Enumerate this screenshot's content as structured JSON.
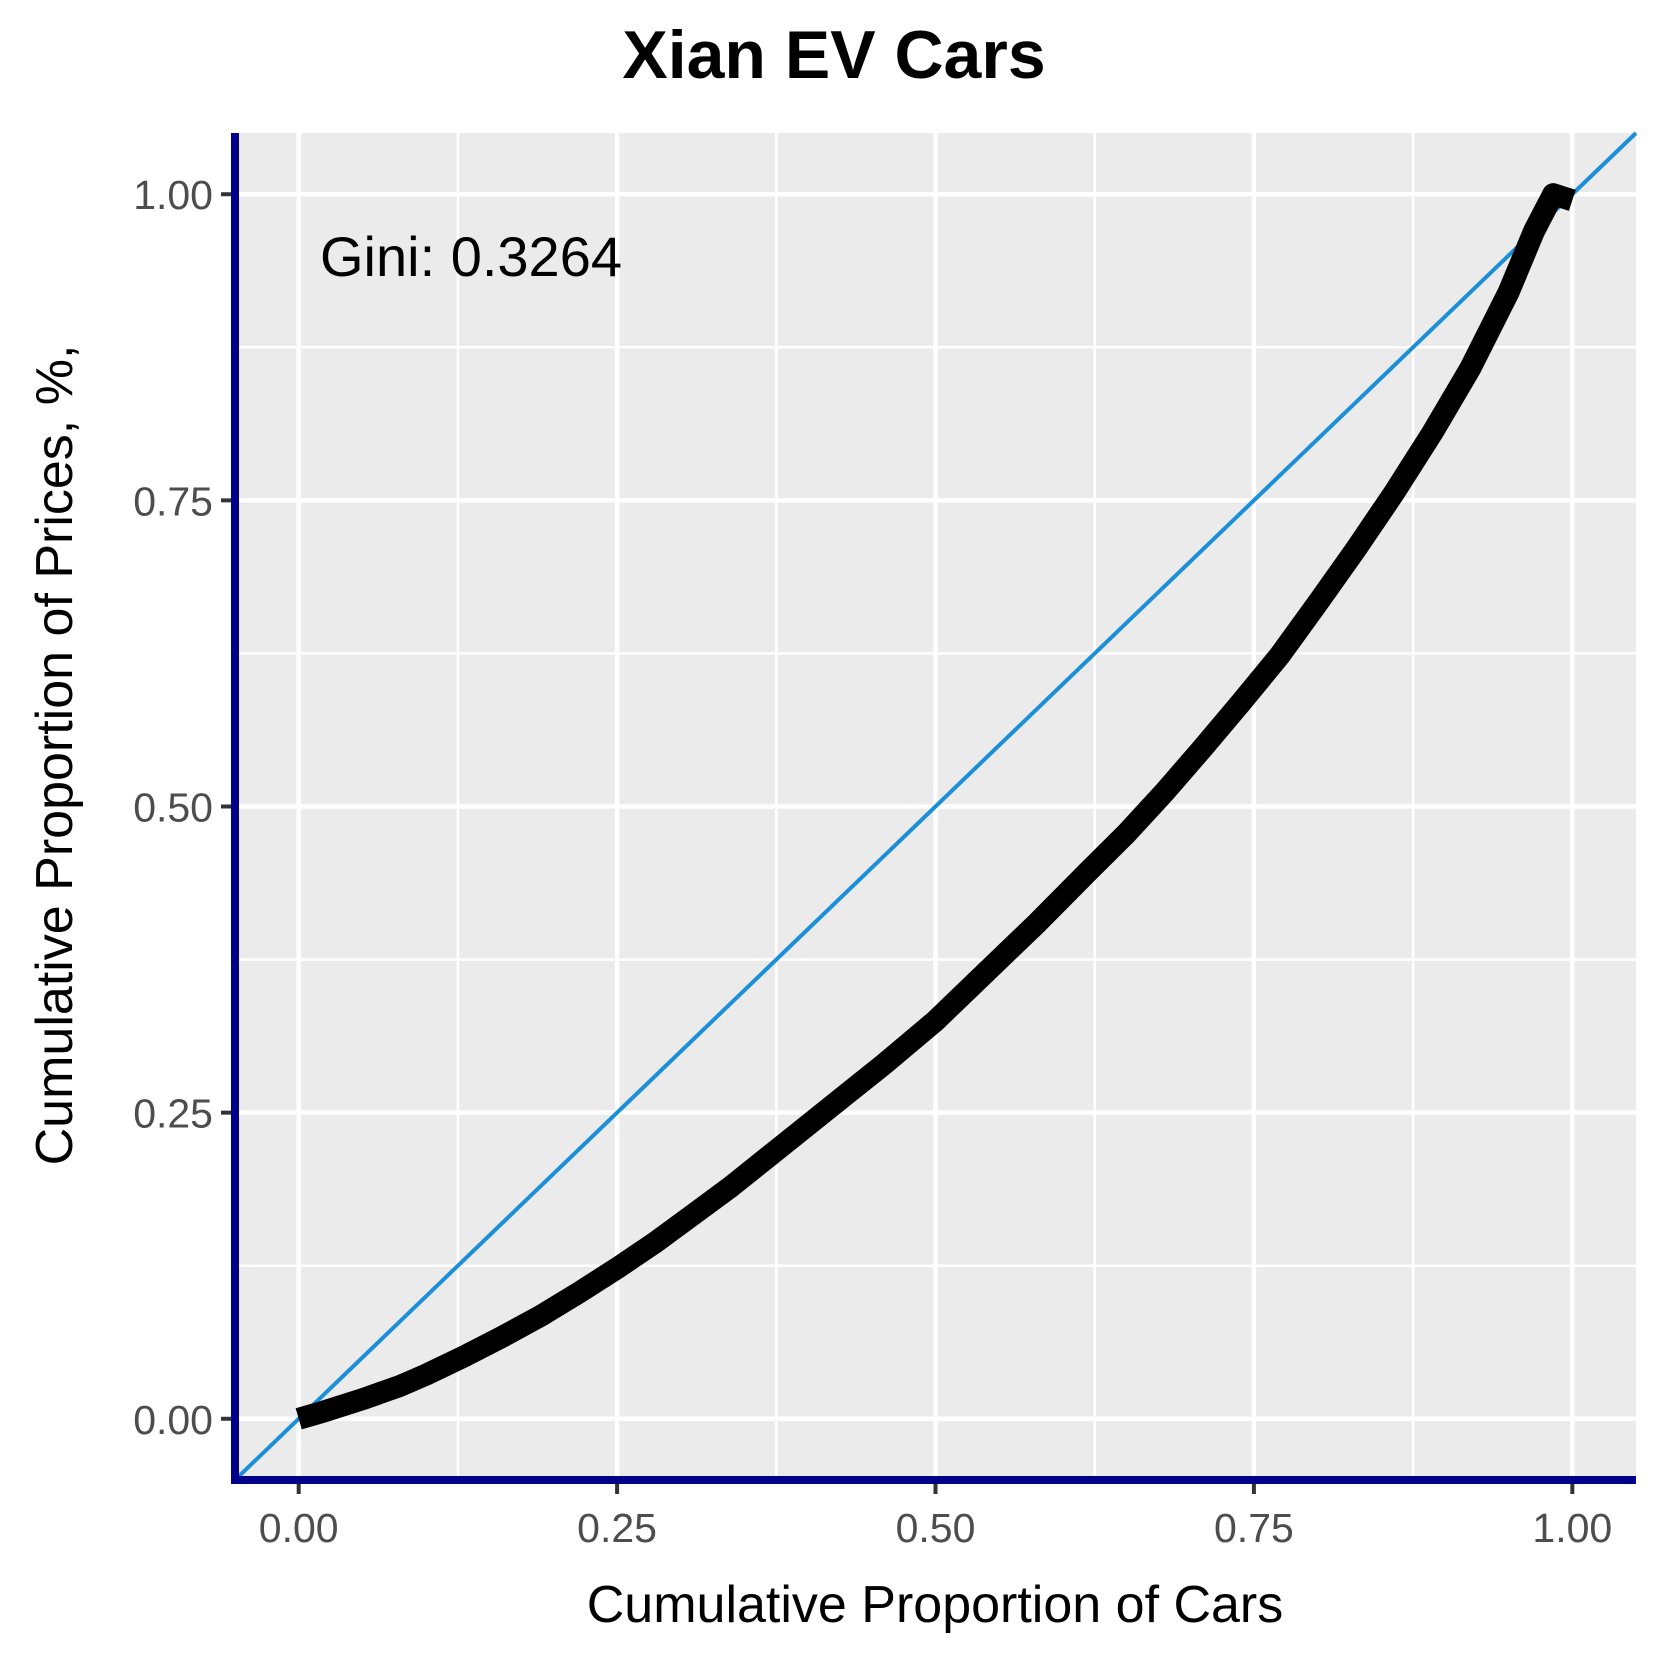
{
  "chart_data": {
    "type": "line",
    "title": "Xian EV Cars",
    "xlabel": "Cumulative Proportion of Cars",
    "ylabel": "Cumulative Proportion of Prices, %,",
    "xlim": [
      -0.05,
      1.05
    ],
    "ylim": [
      -0.05,
      1.05
    ],
    "x_ticks": [
      "0.00",
      "0.25",
      "0.50",
      "0.75",
      "1.00"
    ],
    "y_ticks": [
      "0.00",
      "0.25",
      "0.50",
      "0.75",
      "1.00"
    ],
    "grid": true,
    "annotation": "Gini: 0.3264",
    "reference_line": {
      "from": [
        -0.05,
        -0.05
      ],
      "to": [
        1.05,
        1.05
      ],
      "color": "#1b8fd8"
    },
    "series": [
      {
        "color": "#000000",
        "x": [
          0.0,
          0.02,
          0.05,
          0.08,
          0.1,
          0.13,
          0.16,
          0.19,
          0.22,
          0.25,
          0.28,
          0.31,
          0.34,
          0.37,
          0.4,
          0.43,
          0.46,
          0.5,
          0.54,
          0.58,
          0.62,
          0.65,
          0.68,
          0.71,
          0.74,
          0.77,
          0.8,
          0.83,
          0.86,
          0.89,
          0.92,
          0.95,
          0.97,
          0.985,
          1.0
        ],
        "y": [
          0.0,
          0.006,
          0.016,
          0.027,
          0.036,
          0.051,
          0.067,
          0.084,
          0.103,
          0.123,
          0.144,
          0.167,
          0.19,
          0.215,
          0.24,
          0.265,
          0.29,
          0.325,
          0.365,
          0.405,
          0.447,
          0.478,
          0.512,
          0.548,
          0.585,
          0.623,
          0.666,
          0.71,
          0.756,
          0.805,
          0.858,
          0.92,
          0.97,
          1.0,
          0.995
        ]
      }
    ],
    "colors": {
      "panel": "#ebebeb",
      "grid": "#ffffff",
      "axis_line": "#00008b",
      "reference": "#1b8fd8",
      "curve": "#000000"
    }
  }
}
